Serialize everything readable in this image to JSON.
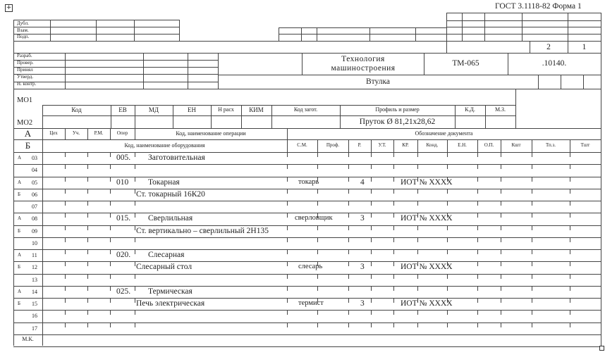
{
  "form_title": "ГОСТ 3.1118-82 Форма 1",
  "icons": {
    "move_handle": "table-move-icon",
    "resize_handle": "table-resize-icon"
  },
  "signatures_top": [
    "Дубл.",
    "Взам.",
    "Подп."
  ],
  "sheets": {
    "total": "2",
    "current": "1"
  },
  "signatures": [
    "Разраб.",
    "Провер.",
    "Принял",
    "Утверд.",
    "Н. контр."
  ],
  "organization": "Технология машиностроения",
  "group_code": "ТМ-065",
  "document_code": ".10140.",
  "part_name": "Втулка",
  "material": {
    "mo1": "МО1",
    "mo2": "МО2",
    "headers": [
      "Код",
      "ЕВ",
      "МД",
      "ЕН",
      "Н расх",
      "КИМ",
      "Код загот.",
      "Профиль и размер",
      "К.Д.",
      "М.З."
    ],
    "profile_value": "Пруток Ø 81,21х28,62"
  },
  "row_a_header": {
    "letter": "А",
    "cols": [
      "Цех",
      "Уч.",
      "Р.М.",
      "Опер",
      "Код, наименование операции"
    ],
    "doc": "Обозначение документа"
  },
  "row_b_header": {
    "letter": "Б",
    "equipment": "Код, наименование оборудования",
    "cols": [
      "С.М.",
      "Проф.",
      "Р.",
      "У.Т.",
      "КР.",
      "Конд.",
      "Е.Н.",
      "О.П.",
      "Кшт",
      "Тп.з.",
      "Тшт"
    ]
  },
  "rows": [
    {
      "letter": "А",
      "num": "03",
      "oper": "005.",
      "name": "Заготовительная",
      "prof": "",
      "r": "",
      "doc": ""
    },
    {
      "letter": "",
      "num": "04",
      "oper": "",
      "name": "",
      "prof": "",
      "r": "",
      "doc": ""
    },
    {
      "letter": "А",
      "num": "05",
      "oper": "010",
      "name": "Токарная",
      "prof": "токарь",
      "r": "4",
      "doc": "ИОТ № ХХХХ"
    },
    {
      "letter": "Б",
      "num": "06",
      "oper": "",
      "name": "Ст. токарный 16К20",
      "prof": "",
      "r": "",
      "doc": ""
    },
    {
      "letter": "",
      "num": "07",
      "oper": "",
      "name": "",
      "prof": "",
      "r": "",
      "doc": ""
    },
    {
      "letter": "А",
      "num": "08",
      "oper": "015.",
      "name": "Сверлильная",
      "prof": "сверловщик",
      "r": "3",
      "doc": "ИОТ № ХХХХ"
    },
    {
      "letter": "Б",
      "num": "09",
      "oper": "",
      "name": "Ст. вертикально – сверлильный 2Н135",
      "prof": "",
      "r": "",
      "doc": ""
    },
    {
      "letter": "",
      "num": "10",
      "oper": "",
      "name": "",
      "prof": "",
      "r": "",
      "doc": ""
    },
    {
      "letter": "А",
      "num": "11",
      "oper": "020.",
      "name": "Слесарная",
      "prof": "",
      "r": "",
      "doc": ""
    },
    {
      "letter": "Б",
      "num": "12",
      "oper": "",
      "name": "Слесарный стол",
      "prof": "слесарь",
      "r": "3",
      "doc": "ИОТ № ХХХХ"
    },
    {
      "letter": "",
      "num": "13",
      "oper": "",
      "name": "",
      "prof": "",
      "r": "",
      "doc": ""
    },
    {
      "letter": "А",
      "num": "14",
      "oper": "025.",
      "name": "Термическая",
      "prof": "",
      "r": "",
      "doc": ""
    },
    {
      "letter": "Б",
      "num": "15",
      "oper": "",
      "name": "Печь электрическая",
      "prof": "термист",
      "r": "3",
      "doc": "ИОТ № ХХХХ"
    },
    {
      "letter": "",
      "num": "16",
      "oper": "",
      "name": "",
      "prof": "",
      "r": "",
      "doc": ""
    },
    {
      "letter": "",
      "num": "17",
      "oper": "",
      "name": "",
      "prof": "",
      "r": "",
      "doc": ""
    }
  ],
  "footer_label": "М.К."
}
